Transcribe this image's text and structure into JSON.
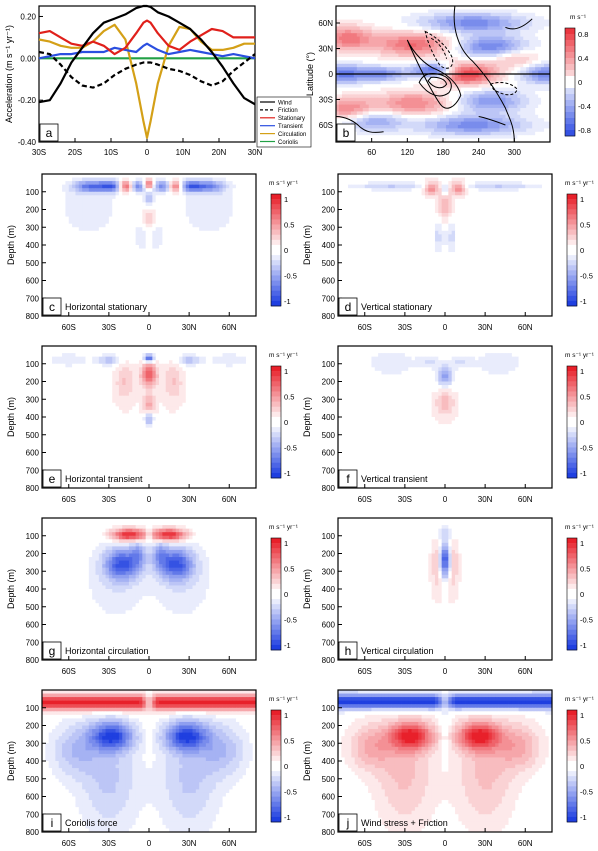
{
  "chart_data": [
    {
      "panel": "a",
      "type": "line",
      "ylabel": "Acceleration (m s⁻¹ yr⁻¹)",
      "ylim": [
        -0.4,
        0.25
      ],
      "yticks": [
        "0.20",
        "0.00",
        "-0.20",
        "-0.40"
      ],
      "xticks": [
        "30S",
        "20S",
        "10S",
        "0",
        "10N",
        "20N",
        "30N"
      ],
      "x": [
        -30,
        -27,
        -24,
        -21,
        -18,
        -15,
        -12,
        -9,
        -6,
        -3,
        -1,
        0,
        1,
        3,
        6,
        9,
        12,
        15,
        18,
        21,
        24,
        27,
        30
      ],
      "legend_position": "bottom-right",
      "series": [
        {
          "name": "Wind",
          "color": "#000000",
          "dash": "solid",
          "values": [
            -0.21,
            -0.2,
            -0.12,
            -0.02,
            0.05,
            0.12,
            0.17,
            0.19,
            0.21,
            0.24,
            0.25,
            0.25,
            0.245,
            0.22,
            0.2,
            0.17,
            0.14,
            0.09,
            0.03,
            -0.04,
            -0.12,
            -0.19,
            -0.22
          ]
        },
        {
          "name": "Friction",
          "color": "#000000",
          "dash": "dashed",
          "values": [
            0.03,
            0.02,
            -0.03,
            -0.09,
            -0.13,
            -0.14,
            -0.12,
            -0.08,
            -0.05,
            -0.03,
            -0.02,
            -0.02,
            -0.02,
            -0.03,
            -0.05,
            -0.06,
            -0.08,
            -0.11,
            -0.13,
            -0.11,
            -0.06,
            -0.02,
            0.02
          ]
        },
        {
          "name": "Stationary",
          "color": "#e0201b",
          "dash": "solid",
          "values": [
            0.12,
            0.13,
            0.1,
            0.07,
            0.06,
            0.08,
            0.06,
            0.02,
            0.05,
            0.12,
            0.17,
            0.18,
            0.17,
            0.12,
            0.06,
            0.04,
            0.08,
            0.11,
            0.14,
            0.13,
            0.1,
            0.1,
            0.1
          ]
        },
        {
          "name": "Transient",
          "color": "#2b4fe0",
          "dash": "solid",
          "values": [
            0.0,
            0.01,
            0.02,
            0.02,
            0.03,
            0.03,
            0.03,
            0.05,
            0.04,
            0.03,
            0.06,
            0.07,
            0.06,
            0.04,
            0.02,
            0.03,
            0.04,
            0.03,
            0.02,
            0.01,
            0.02,
            0.01,
            0.0
          ]
        },
        {
          "name": "Circulation",
          "color": "#d4a017",
          "dash": "solid",
          "values": [
            0.09,
            0.08,
            0.06,
            0.05,
            0.05,
            0.08,
            0.13,
            0.16,
            0.09,
            -0.12,
            -0.3,
            -0.38,
            -0.3,
            -0.12,
            0.06,
            0.15,
            0.14,
            0.08,
            0.04,
            0.04,
            0.05,
            0.07,
            0.07
          ]
        },
        {
          "name": "Coriolis",
          "color": "#22a046",
          "dash": "solid",
          "values": [
            0.0,
            0.0,
            0.0,
            0.0,
            0.0,
            0.0,
            0.0,
            0.0,
            0.0,
            0.0,
            0.0,
            0.0,
            0.0,
            0.0,
            0.0,
            0.0,
            0.0,
            0.0,
            0.0,
            0.0,
            0.0,
            0.0,
            0.0
          ]
        }
      ]
    },
    {
      "panel": "b",
      "type": "heatmap",
      "ylabel": "Latitude (°)",
      "xticks": [
        "60",
        "120",
        "180",
        "240",
        "300"
      ],
      "yticks": [
        "60N",
        "30N",
        "0",
        "30S",
        "60S"
      ],
      "colorbar_unit": "m s⁻¹",
      "colorbar_ticks": [
        "0.8",
        "0.4",
        "0",
        "-0.4",
        "-0.8"
      ],
      "zlim": [
        -0.9,
        0.9
      ]
    },
    {
      "panel": "c",
      "type": "heatmap",
      "title": "Horizontal stationary",
      "ylabel": "Depth (m)"
    },
    {
      "panel": "d",
      "type": "heatmap",
      "title": "Vertical stationary",
      "ylabel": "Depth (m)"
    },
    {
      "panel": "e",
      "type": "heatmap",
      "title": "Horizontal transient",
      "ylabel": "Depth (m)"
    },
    {
      "panel": "f",
      "type": "heatmap",
      "title": "Vertical transient",
      "ylabel": "Depth (m)"
    },
    {
      "panel": "g",
      "type": "heatmap",
      "title": "Horizontal circulation",
      "ylabel": "Depth (m)"
    },
    {
      "panel": "h",
      "type": "heatmap",
      "title": "Vertical circulation",
      "ylabel": "Depth (m)"
    },
    {
      "panel": "i",
      "type": "heatmap",
      "title": "Coriolis force",
      "ylabel": "Depth (m)"
    },
    {
      "panel": "j",
      "type": "heatmap",
      "title": "Wind stress + Friction",
      "ylabel": "Depth (m)"
    }
  ],
  "depth_axis": {
    "ylim": [
      0,
      800
    ],
    "yticks": [
      "100",
      "200",
      "300",
      "400",
      "500",
      "600",
      "700",
      "800"
    ],
    "xticks": [
      "60S",
      "30S",
      "0",
      "30N",
      "60N"
    ],
    "colorbar_unit": "m s⁻¹ yr⁻¹",
    "colorbar_ticks": [
      "1",
      "0.5",
      "0",
      "-0.5",
      "-1"
    ],
    "zlim": [
      -1.1,
      1.1
    ]
  },
  "colors": {
    "positive": "#e8202a",
    "negative": "#1f3fe0",
    "neutral": "#ffffff"
  }
}
